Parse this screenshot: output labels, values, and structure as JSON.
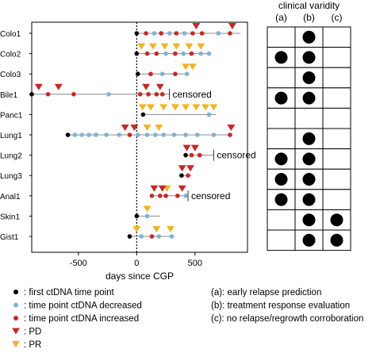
{
  "chart_data": {
    "type": "scatter",
    "xlabel": "days since CGP",
    "xlim": [
      -900,
      950
    ],
    "xticks": [
      -500,
      0,
      500
    ],
    "xtick_labels": [
      "-500",
      "0",
      "500"
    ],
    "patients": [
      {
        "name": "Colo1",
        "line": [
          0,
          890
        ],
        "end_tick": false,
        "markers": [
          {
            "x": 0,
            "type": "first"
          },
          {
            "x": 80,
            "type": "increased"
          },
          {
            "x": 150,
            "type": "decreased"
          },
          {
            "x": 210,
            "type": "increased"
          },
          {
            "x": 280,
            "type": "decreased"
          },
          {
            "x": 340,
            "type": "increased"
          },
          {
            "x": 410,
            "type": "decreased"
          },
          {
            "x": 480,
            "type": "increased"
          },
          {
            "x": 560,
            "type": "increased"
          },
          {
            "x": 700,
            "type": "decreased"
          },
          {
            "x": 800,
            "type": "increased"
          }
        ],
        "pd": [
          510,
          820
        ],
        "pr": []
      },
      {
        "name": "Colo2",
        "line": [
          0,
          640
        ],
        "end_tick": false,
        "markers": [
          {
            "x": 0,
            "type": "first"
          },
          {
            "x": 90,
            "type": "increased"
          },
          {
            "x": 170,
            "type": "increased"
          },
          {
            "x": 250,
            "type": "decreased"
          },
          {
            "x": 330,
            "type": "increased"
          },
          {
            "x": 400,
            "type": "decreased"
          },
          {
            "x": 470,
            "type": "increased"
          },
          {
            "x": 550,
            "type": "decreased"
          },
          {
            "x": 620,
            "type": "decreased"
          }
        ],
        "pd": [],
        "pr": [
          40,
          140,
          240,
          340,
          450,
          550
        ]
      },
      {
        "name": "Colo3",
        "line": [
          0,
          440
        ],
        "end_tick": false,
        "markers": [
          {
            "x": 10,
            "type": "first"
          },
          {
            "x": 120,
            "type": "increased"
          },
          {
            "x": 220,
            "type": "decreased"
          },
          {
            "x": 330,
            "type": "increased"
          },
          {
            "x": 430,
            "type": "decreased"
          }
        ],
        "pd": [],
        "pr": [
          420,
          480
        ]
      },
      {
        "name": "Bile1",
        "line": [
          -900,
          280
        ],
        "end_tick": true,
        "label": "censored",
        "markers": [
          {
            "x": -900,
            "type": "first"
          },
          {
            "x": -760,
            "type": "increased"
          },
          {
            "x": -540,
            "type": "increased"
          },
          {
            "x": -240,
            "type": "decreased"
          },
          {
            "x": 30,
            "type": "increased"
          },
          {
            "x": 100,
            "type": "increased"
          },
          {
            "x": 170,
            "type": "increased"
          },
          {
            "x": 220,
            "type": "increased"
          }
        ],
        "pd": [
          -840,
          -670,
          80,
          200
        ],
        "pr": []
      },
      {
        "name": "Panc1",
        "line": [
          50,
          680
        ],
        "end_tick": false,
        "markers": [
          {
            "x": 55,
            "type": "first"
          },
          {
            "x": 620,
            "type": "decreased"
          }
        ],
        "pd": [],
        "pr": [
          50,
          120,
          230,
          330,
          420,
          510,
          590,
          660
        ]
      },
      {
        "name": "Lung1",
        "line": [
          -600,
          820
        ],
        "end_tick": false,
        "markers": [
          {
            "x": -590,
            "type": "first"
          },
          {
            "x": -530,
            "type": "decreased"
          },
          {
            "x": -470,
            "type": "decreased"
          },
          {
            "x": -410,
            "type": "decreased"
          },
          {
            "x": -350,
            "type": "decreased"
          },
          {
            "x": -260,
            "type": "decreased"
          },
          {
            "x": -150,
            "type": "decreased"
          },
          {
            "x": -60,
            "type": "increased"
          },
          {
            "x": 10,
            "type": "decreased"
          },
          {
            "x": 90,
            "type": "decreased"
          },
          {
            "x": 160,
            "type": "decreased"
          },
          {
            "x": 230,
            "type": "decreased"
          },
          {
            "x": 320,
            "type": "decreased"
          },
          {
            "x": 420,
            "type": "decreased"
          },
          {
            "x": 520,
            "type": "decreased"
          },
          {
            "x": 660,
            "type": "decreased"
          },
          {
            "x": 800,
            "type": "increased"
          }
        ],
        "pd": [
          -100,
          -20,
          810
        ],
        "pr": [
          90,
          190
        ]
      },
      {
        "name": "Lung2",
        "line": [
          420,
          660
        ],
        "end_tick": true,
        "label": "censored",
        "markers": [
          {
            "x": 420,
            "type": "first"
          },
          {
            "x": 470,
            "type": "increased"
          },
          {
            "x": 540,
            "type": "increased"
          }
        ],
        "pd": [
          430,
          500
        ],
        "pr": []
      },
      {
        "name": "Lung3",
        "line": [
          380,
          470
        ],
        "end_tick": false,
        "markers": [
          {
            "x": 385,
            "type": "first"
          },
          {
            "x": 440,
            "type": "increased"
          }
        ],
        "pd": [
          390,
          460
        ],
        "pr": []
      },
      {
        "name": "Anal1",
        "line": [
          120,
          440
        ],
        "end_tick": true,
        "label": "censored",
        "markers": [
          {
            "x": 130,
            "type": "increased"
          },
          {
            "x": 200,
            "type": "increased"
          },
          {
            "x": 250,
            "type": "increased"
          },
          {
            "x": 350,
            "type": "increased"
          },
          {
            "x": 420,
            "type": "decreased"
          }
        ],
        "pd": [
          150,
          220,
          390
        ],
        "pr": [
          260
        ]
      },
      {
        "name": "Skin1",
        "line": [
          0,
          200
        ],
        "end_tick": false,
        "markers": [
          {
            "x": 0,
            "type": "first"
          },
          {
            "x": 90,
            "type": "decreased"
          }
        ],
        "pd": [],
        "pr": [
          90
        ]
      },
      {
        "name": "Gist1",
        "line": [
          -60,
          320
        ],
        "end_tick": false,
        "markers": [
          {
            "x": -60,
            "type": "first"
          },
          {
            "x": 40,
            "type": "decreased"
          },
          {
            "x": 130,
            "type": "increased"
          },
          {
            "x": 190,
            "type": "decreased"
          },
          {
            "x": 300,
            "type": "decreased"
          }
        ],
        "pd": [],
        "pr": [
          0,
          170,
          290
        ]
      }
    ],
    "clinical_validity": {
      "title": "clinical varidity",
      "columns": [
        "(a)",
        "(b)",
        "(c)"
      ],
      "rows": {
        "Colo1": [
          false,
          true,
          false
        ],
        "Colo2": [
          true,
          true,
          false
        ],
        "Colo3": [
          false,
          true,
          false
        ],
        "Bile1": [
          true,
          true,
          false
        ],
        "Panc1": [
          false,
          false,
          false
        ],
        "Lung1": [
          false,
          true,
          false
        ],
        "Lung2": [
          true,
          true,
          false
        ],
        "Lung3": [
          true,
          true,
          false
        ],
        "Anal1": [
          true,
          true,
          false
        ],
        "Skin1": [
          false,
          true,
          true
        ],
        "Gist1": [
          false,
          true,
          true
        ]
      }
    },
    "legend": {
      "first": ": first ctDNA time point",
      "decreased": ": time point ctDNA decreased",
      "increased": ": time point ctDNA increased",
      "pd": ": PD",
      "pr": ": PR"
    },
    "legend_right": [
      "(a): early relapse prediction",
      "(b): treatment response evaluation",
      "(c): no relapse/regrowth corroboration"
    ],
    "colors": {
      "first": "#000000",
      "decreased": "#7fb2d5",
      "increased": "#c62828",
      "pd": "#c62828",
      "pr": "#f0b429",
      "line": "#888888"
    }
  }
}
